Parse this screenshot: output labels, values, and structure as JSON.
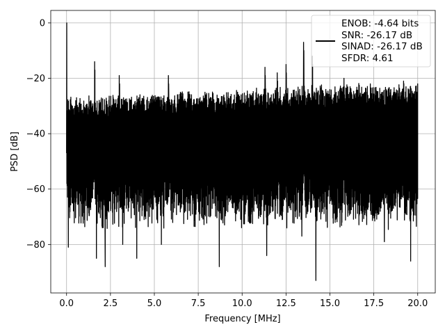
{
  "chart_data": {
    "type": "line",
    "title": "",
    "xlabel": "Frequency [MHz]",
    "ylabel": "PSD [dB]",
    "xlim": [
      -0.9,
      21.0
    ],
    "ylim": [
      -97.5,
      4.5
    ],
    "xticks": [
      0.0,
      2.5,
      5.0,
      7.5,
      10.0,
      12.5,
      15.0,
      17.5,
      20.0
    ],
    "xtick_labels": [
      "0.0",
      "2.5",
      "5.0",
      "7.5",
      "10.0",
      "12.5",
      "15.0",
      "17.5",
      "20.0"
    ],
    "yticks": [
      0,
      -20,
      -40,
      -60,
      -80
    ],
    "ytick_labels": [
      "0",
      "−20",
      "−40",
      "−60",
      "−80"
    ],
    "grid": true,
    "legend_position": "top-right",
    "series": [
      {
        "name": "ENOB: -4.64 bits\nSNR: -26.17 dB\nSINAD: -26.17 dB\nSFDR: 4.61",
        "legend_lines": [
          "ENOB: -4.64 bits",
          "SNR: -26.17 dB",
          "SINAD: -26.17 dB",
          "SFDR: 4.61"
        ],
        "color": "#000000",
        "x_range": [
          0.0,
          20.0
        ],
        "peak": {
          "x": 0.0,
          "y": 0.0
        },
        "noise_band": {
          "upper_db": [
            -28,
            -22
          ],
          "lower_db": [
            -75,
            -65
          ],
          "typical_center_db": -42
        },
        "spurs": [
          {
            "x": 1.6,
            "y": -14
          },
          {
            "x": 3.0,
            "y": -19
          },
          {
            "x": 5.8,
            "y": -19
          },
          {
            "x": 11.3,
            "y": -16
          },
          {
            "x": 12.0,
            "y": -18
          },
          {
            "x": 12.5,
            "y": -15
          },
          {
            "x": 13.5,
            "y": -7
          },
          {
            "x": 14.0,
            "y": -12
          },
          {
            "x": 15.8,
            "y": -20
          },
          {
            "x": 17.3,
            "y": -22
          }
        ],
        "dips": [
          {
            "x": 0.1,
            "y": -81
          },
          {
            "x": 1.7,
            "y": -85
          },
          {
            "x": 2.2,
            "y": -88
          },
          {
            "x": 3.2,
            "y": -80
          },
          {
            "x": 4.0,
            "y": -85
          },
          {
            "x": 5.4,
            "y": -80
          },
          {
            "x": 8.7,
            "y": -88
          },
          {
            "x": 11.4,
            "y": -84
          },
          {
            "x": 13.4,
            "y": -77
          },
          {
            "x": 14.2,
            "y": -93
          },
          {
            "x": 18.1,
            "y": -79
          },
          {
            "x": 19.6,
            "y": -86
          }
        ]
      }
    ]
  }
}
